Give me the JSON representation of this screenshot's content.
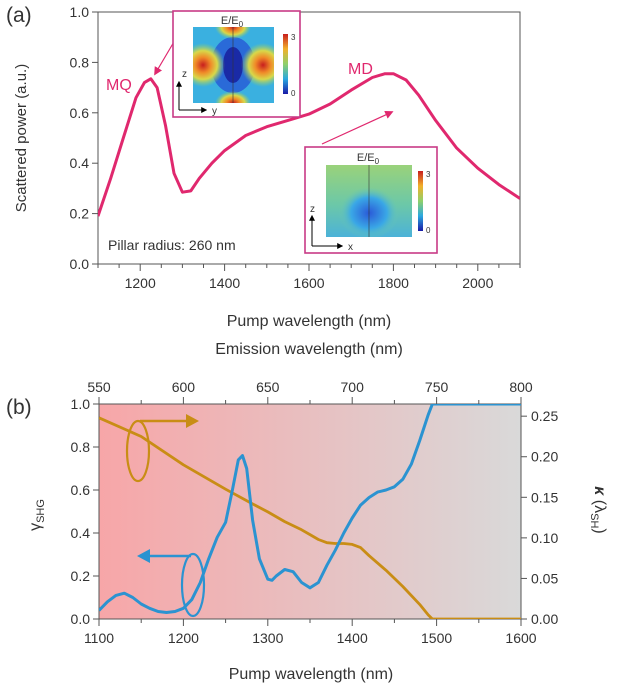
{
  "panel_a": {
    "label": "(a)",
    "annotation_mq": "MQ",
    "annotation_md": "MD",
    "note": "Pillar radius: 260 nm",
    "inset_top": {
      "title_base": "E/E",
      "title_sub": "0",
      "cb_max": "3",
      "cb_min": "0",
      "axis_v": "z",
      "axis_h": "y"
    },
    "inset_bottom": {
      "title_base": "E/E",
      "title_sub": "0",
      "cb_max": "3",
      "cb_min": "0",
      "axis_v": "z",
      "axis_h": "x"
    }
  },
  "panel_b": {
    "label": "(b)"
  },
  "colors": {
    "pink": "#e0286e",
    "blue": "#2b93d1",
    "gold": "#c98d15",
    "bg_left": "#f5a9aa",
    "bg_right": "#d9d9d9"
  },
  "chart_data": [
    {
      "type": "line",
      "xlabel": "Pump wavelength (nm)",
      "ylabel": "Scattered power (a.u.)",
      "xlim": [
        1100,
        2100
      ],
      "ylim": [
        0,
        1.0
      ],
      "xticks": [
        1200,
        1400,
        1600,
        1800,
        2000
      ],
      "xtick_labels": [
        "1200",
        "1400",
        "1600",
        "1800",
        "2000"
      ],
      "yticks": [
        0,
        0.2,
        0.4,
        0.6,
        0.8,
        1.0
      ],
      "ytick_labels": [
        "0.0",
        "0.2",
        "0.4",
        "0.6",
        "0.8",
        "1.0"
      ],
      "series": [
        {
          "color": "#e0286e",
          "x": [
            1100,
            1130,
            1160,
            1190,
            1210,
            1225,
            1240,
            1260,
            1280,
            1300,
            1320,
            1340,
            1370,
            1400,
            1450,
            1500,
            1550,
            1600,
            1650,
            1700,
            1750,
            1780,
            1800,
            1830,
            1860,
            1900,
            1950,
            2000,
            2050,
            2100
          ],
          "y": [
            0.19,
            0.34,
            0.5,
            0.66,
            0.72,
            0.735,
            0.7,
            0.55,
            0.36,
            0.285,
            0.29,
            0.34,
            0.4,
            0.45,
            0.51,
            0.545,
            0.57,
            0.595,
            0.635,
            0.69,
            0.74,
            0.755,
            0.755,
            0.73,
            0.67,
            0.57,
            0.46,
            0.38,
            0.315,
            0.26
          ]
        }
      ]
    },
    {
      "type": "line",
      "xlabel": "Pump wavelength (nm)",
      "x2label": "Emission wavelength (nm)",
      "xlim": [
        1100,
        1600
      ],
      "xticks": [
        1100,
        1200,
        1300,
        1400,
        1500,
        1600
      ],
      "xtick_labels": [
        "1100",
        "1200",
        "1300",
        "1400",
        "1500",
        "1600"
      ],
      "x2lim": [
        550,
        800
      ],
      "x2ticks": [
        550,
        600,
        650,
        700,
        750,
        800
      ],
      "x2tick_labels": [
        "550",
        "600",
        "650",
        "700",
        "750",
        "800"
      ],
      "ylim_left": [
        0,
        1.0
      ],
      "yticks_left": [
        0,
        0.2,
        0.4,
        0.6,
        0.8,
        1.0
      ],
      "ytick_labels_left": [
        "0.0",
        "0.2",
        "0.4",
        "0.6",
        "0.8",
        "1.0"
      ],
      "ylim_right": [
        0,
        0.265
      ],
      "yticks_right": [
        0,
        0.05,
        0.1,
        0.15,
        0.2,
        0.25
      ],
      "ytick_labels_right": [
        "0.00",
        "0.05",
        "0.10",
        "0.15",
        "0.20",
        "0.25"
      ],
      "series": [
        {
          "axis": "left",
          "color": "#2b93d1",
          "x": [
            1100,
            1110,
            1120,
            1130,
            1140,
            1150,
            1160,
            1170,
            1180,
            1190,
            1200,
            1210,
            1220,
            1230,
            1240,
            1250,
            1258,
            1265,
            1270,
            1275,
            1282,
            1290,
            1300,
            1305,
            1310,
            1320,
            1330,
            1340,
            1350,
            1360,
            1370,
            1380,
            1390,
            1400,
            1410,
            1420,
            1430,
            1440,
            1450,
            1460,
            1470,
            1480,
            1490,
            1495,
            1500,
            1550,
            1600
          ],
          "y": [
            0.04,
            0.08,
            0.11,
            0.12,
            0.1,
            0.07,
            0.05,
            0.035,
            0.03,
            0.035,
            0.05,
            0.09,
            0.17,
            0.28,
            0.38,
            0.45,
            0.6,
            0.74,
            0.76,
            0.7,
            0.46,
            0.28,
            0.185,
            0.18,
            0.2,
            0.23,
            0.22,
            0.17,
            0.145,
            0.17,
            0.25,
            0.32,
            0.4,
            0.47,
            0.53,
            0.565,
            0.59,
            0.6,
            0.615,
            0.65,
            0.72,
            0.83,
            0.95,
            1.0,
            1.0,
            1.0,
            1.0
          ]
        },
        {
          "axis": "right",
          "color": "#c98d15",
          "x": [
            1100,
            1150,
            1200,
            1250,
            1280,
            1300,
            1320,
            1340,
            1350,
            1360,
            1370,
            1380,
            1390,
            1400,
            1410,
            1420,
            1440,
            1460,
            1480,
            1490,
            1495,
            1500,
            1600
          ],
          "y": [
            0.248,
            0.225,
            0.19,
            0.16,
            0.143,
            0.132,
            0.12,
            0.11,
            0.104,
            0.098,
            0.094,
            0.093,
            0.093,
            0.092,
            0.088,
            0.078,
            0.06,
            0.04,
            0.018,
            0.005,
            0.0,
            0.0,
            0.0
          ]
        }
      ]
    }
  ]
}
